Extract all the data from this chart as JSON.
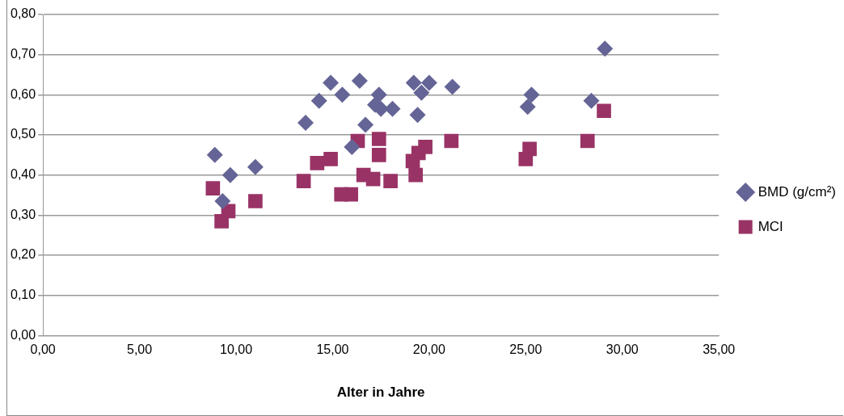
{
  "chart_data": {
    "type": "scatter",
    "xlabel": "Alter in Jahre",
    "xlim": [
      0,
      35
    ],
    "xticks": [
      {
        "value": 0,
        "label": "0,00"
      },
      {
        "value": 5,
        "label": "5,00"
      },
      {
        "value": 10,
        "label": "10,00"
      },
      {
        "value": 15,
        "label": "15,00"
      },
      {
        "value": 20,
        "label": "20,00"
      },
      {
        "value": 25,
        "label": "25,00"
      },
      {
        "value": 30,
        "label": "30,00"
      },
      {
        "value": 35,
        "label": "35,00"
      }
    ],
    "ylim": [
      0,
      0.8
    ],
    "yticks": [
      {
        "value": 0,
        "label": "0,00"
      },
      {
        "value": 0.1,
        "label": "0,10"
      },
      {
        "value": 0.2,
        "label": "0,20"
      },
      {
        "value": 0.3,
        "label": "0,30"
      },
      {
        "value": 0.4,
        "label": "0,40"
      },
      {
        "value": 0.5,
        "label": "0,50"
      },
      {
        "value": 0.6,
        "label": "0,60"
      },
      {
        "value": 0.7,
        "label": "0,70"
      },
      {
        "value": 0.8,
        "label": "0,80"
      }
    ],
    "grid": "y",
    "legend": "right",
    "series": [
      {
        "name": "BMD (g/cm²)",
        "color": "#646496",
        "marker": "diamond",
        "x": [
          8.9,
          9.3,
          9.7,
          11.0,
          13.6,
          14.3,
          14.9,
          15.5,
          16.0,
          16.4,
          16.7,
          17.2,
          17.4,
          17.5,
          18.1,
          19.2,
          19.4,
          19.6,
          20.0,
          21.2,
          25.1,
          25.3,
          28.4,
          29.1
        ],
        "values": [
          0.45,
          0.335,
          0.4,
          0.42,
          0.53,
          0.585,
          0.63,
          0.6,
          0.47,
          0.635,
          0.525,
          0.575,
          0.6,
          0.565,
          0.565,
          0.63,
          0.55,
          0.605,
          0.63,
          0.62,
          0.57,
          0.6,
          0.585,
          0.715
        ]
      },
      {
        "name": "MCI",
        "color": "#993366",
        "marker": "square",
        "x": [
          8.8,
          9.25,
          9.6,
          11.0,
          13.5,
          14.2,
          14.9,
          15.45,
          15.95,
          16.3,
          16.6,
          17.1,
          17.4,
          17.4,
          18.0,
          19.15,
          19.3,
          19.45,
          19.8,
          21.15,
          25.0,
          25.2,
          28.2,
          29.05
        ],
        "values": [
          0.367,
          0.285,
          0.31,
          0.335,
          0.385,
          0.43,
          0.44,
          0.352,
          0.352,
          0.485,
          0.4,
          0.39,
          0.45,
          0.49,
          0.385,
          0.435,
          0.4,
          0.455,
          0.47,
          0.485,
          0.44,
          0.465,
          0.485,
          0.56
        ]
      }
    ]
  }
}
